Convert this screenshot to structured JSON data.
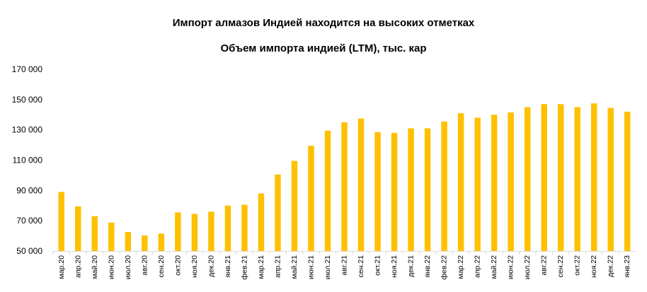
{
  "chart_data": {
    "type": "bar",
    "title": "Импорт алмазов Индией находится на высоких отметках",
    "subtitle": "Объем импорта индией (LTM), тыс. кар",
    "xlabel": "",
    "ylabel": "",
    "ylim": [
      50000,
      170000
    ],
    "yticks": [
      50000,
      70000,
      90000,
      110000,
      130000,
      150000,
      170000
    ],
    "ytick_labels": [
      "50 000",
      "70 000",
      "90 000",
      "110 000",
      "130 000",
      "150 000",
      "170 000"
    ],
    "grid": false,
    "bar_color": "#FFC000",
    "categories": [
      "мар.20",
      "апр.20",
      "май.20",
      "июн.20",
      "июл.20",
      "авг.20",
      "сен.20",
      "окт.20",
      "ноя.20",
      "дек.20",
      "янв.21",
      "фев.21",
      "мар.21",
      "апр.21",
      "май.21",
      "июн.21",
      "июл.21",
      "авг.21",
      "сен.21",
      "окт.21",
      "ноя.21",
      "дек.21",
      "янв.22",
      "фев.22",
      "мар.22",
      "апр.22",
      "май.22",
      "июн.22",
      "июл.22",
      "авг.22",
      "сен.22",
      "окт.22",
      "ноя.22",
      "дек.22",
      "янв.23"
    ],
    "values": [
      89000,
      79500,
      73000,
      68800,
      62500,
      60200,
      61500,
      75500,
      74500,
      76000,
      80000,
      80500,
      88000,
      100500,
      109500,
      119500,
      129500,
      135000,
      137500,
      128500,
      128000,
      131000,
      131000,
      135500,
      141000,
      138000,
      140000,
      141500,
      145000,
      147000,
      147000,
      145000,
      147500,
      144500,
      142000
    ]
  }
}
